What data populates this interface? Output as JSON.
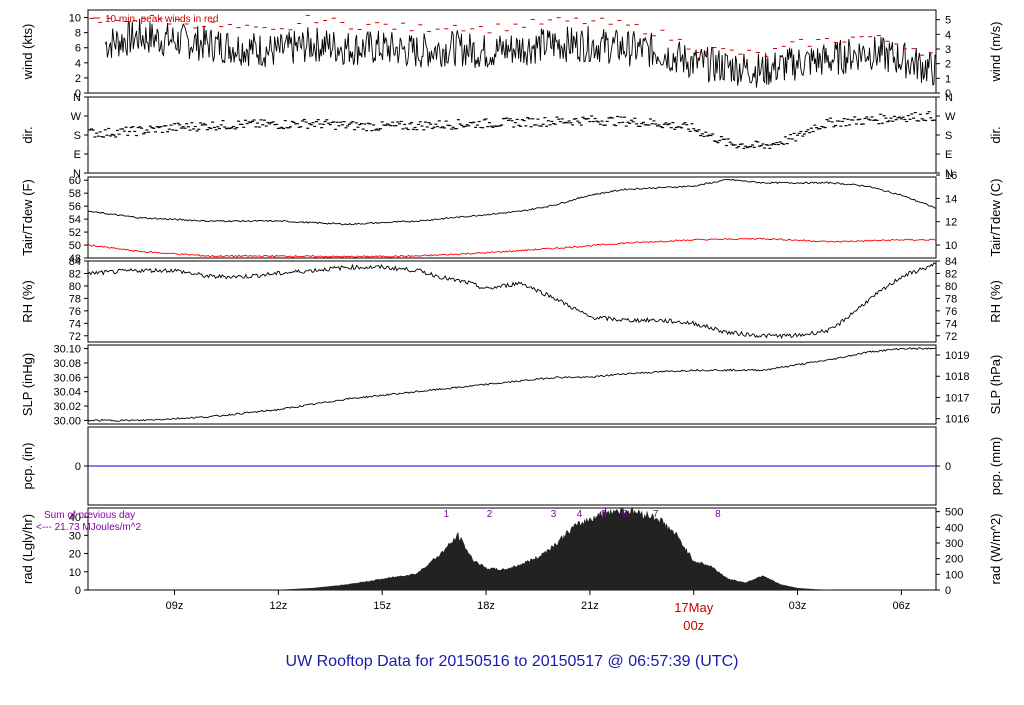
{
  "chart_data": [
    {
      "panel": "wind",
      "type": "line",
      "ylabel_left": "wind (kts)",
      "ylabel_right": "wind (m/s)",
      "ylim": [
        0,
        11
      ],
      "yticks_left": [
        "0",
        "2",
        "4",
        "6",
        "8",
        "10"
      ],
      "yticks_right": [
        "0",
        "1",
        "2",
        "3",
        "4",
        "5"
      ],
      "annotation": "10 min. peak winds in red",
      "series": [
        {
          "color": "#000000",
          "x": [
            7.0,
            8.0,
            9.0,
            10.0,
            11.0,
            12.0,
            13.0,
            14.0,
            15.0,
            16.0,
            17.0,
            18.0,
            19.0,
            20.0,
            21.0,
            22.0,
            23.0,
            24.0,
            25.0,
            26.0,
            27.0,
            28.0,
            29.0,
            30.0,
            31.0
          ],
          "values": [
            6.5,
            7.5,
            7.0,
            6.5,
            6.0,
            5.5,
            6.5,
            6.0,
            6.0,
            5.5,
            6.0,
            5.5,
            6.0,
            6.5,
            6.5,
            6.0,
            5.5,
            4.0,
            3.5,
            3.0,
            4.0,
            4.5,
            5.5,
            4.5,
            3.0
          ]
        },
        {
          "color": "#cc0000",
          "style": "points",
          "x": [
            7.0,
            8.0,
            9.0,
            10.0,
            11.0,
            12.0,
            13.0,
            14.0,
            15.0,
            16.0,
            17.0,
            18.0,
            19.0,
            20.0,
            21.0,
            22.0,
            23.0,
            24.0,
            25.0,
            26.0,
            27.0,
            28.0,
            29.0,
            30.0,
            31.0
          ],
          "values": [
            9.5,
            10.0,
            9.5,
            9.0,
            8.5,
            8.0,
            10.0,
            9.0,
            9.0,
            8.5,
            9.0,
            8.5,
            9.0,
            9.5,
            9.5,
            9.0,
            8.0,
            6.0,
            5.5,
            5.0,
            6.5,
            7.0,
            7.5,
            6.5,
            5.0
          ]
        }
      ]
    },
    {
      "panel": "dir",
      "type": "scatter",
      "ylabel_left": "dir.",
      "ylabel_right": "dir.",
      "ylim": [
        0,
        360
      ],
      "yticks_left": [
        "N",
        "E",
        "S",
        "W",
        "N"
      ],
      "yticks_right": [
        "N",
        "E",
        "S",
        "W",
        "N"
      ],
      "series": [
        {
          "color": "#000000",
          "x": [
            7.0,
            8.0,
            9.0,
            10.0,
            11.0,
            12.0,
            13.0,
            14.0,
            15.0,
            16.0,
            17.0,
            18.0,
            19.0,
            20.0,
            21.0,
            22.0,
            23.0,
            24.0,
            25.0,
            26.0,
            27.0,
            27.5,
            28.0,
            29.0,
            30.0,
            31.0
          ],
          "values": [
            190,
            200,
            215,
            225,
            230,
            230,
            235,
            225,
            220,
            225,
            230,
            235,
            240,
            245,
            250,
            245,
            235,
            210,
            140,
            125,
            170,
            220,
            240,
            250,
            265,
            270
          ]
        }
      ]
    },
    {
      "panel": "temperature",
      "type": "line",
      "ylabel_left": "Tair/Tdew (F)",
      "ylabel_right": "Tair/Tdew (C)",
      "ylim": [
        48,
        60.5
      ],
      "yticks_left": [
        "48",
        "50",
        "52",
        "54",
        "56",
        "58",
        "60"
      ],
      "yticks_right": [
        "10",
        "12",
        "14",
        "16"
      ],
      "series": [
        {
          "color": "#000000",
          "x": [
            6.5,
            8.0,
            10.0,
            12.0,
            14.0,
            16.0,
            18.0,
            19.0,
            20.0,
            21.0,
            22.0,
            24.0,
            25.0,
            26.0,
            28.0,
            29.0,
            30.0,
            31.0
          ],
          "values": [
            55.2,
            54.2,
            53.7,
            53.7,
            53.2,
            53.7,
            54.7,
            55.2,
            56.2,
            57.7,
            58.6,
            59.1,
            60.1,
            59.6,
            59.6,
            59.1,
            57.7,
            55.7
          ]
        },
        {
          "color": "#ff0000",
          "x": [
            6.5,
            8.0,
            10.0,
            12.0,
            14.0,
            16.0,
            18.0,
            20.0,
            22.0,
            24.0,
            26.0,
            28.0,
            30.0,
            31.0
          ],
          "values": [
            50.0,
            49.0,
            48.3,
            48.3,
            48.2,
            48.3,
            48.8,
            49.5,
            50.3,
            50.8,
            51.0,
            50.5,
            50.8,
            50.8
          ]
        }
      ]
    },
    {
      "panel": "rh",
      "type": "line",
      "ylabel_left": "RH (%)",
      "ylabel_right": "RH (%)",
      "ylim": [
        71,
        84
      ],
      "yticks_left": [
        "72",
        "74",
        "76",
        "78",
        "80",
        "82",
        "84"
      ],
      "yticks_right": [
        "72",
        "74",
        "76",
        "78",
        "80",
        "82",
        "84"
      ],
      "series": [
        {
          "color": "#000000",
          "x": [
            6.5,
            8.0,
            9.0,
            10.0,
            11.0,
            12.0,
            13.0,
            14.0,
            15.0,
            16.0,
            17.0,
            17.5,
            18.0,
            19.0,
            20.0,
            21.0,
            22.0,
            23.0,
            24.0,
            25.0,
            26.0,
            27.0,
            28.0,
            29.0,
            30.0,
            31.0
          ],
          "values": [
            82.0,
            82.5,
            82.5,
            81.5,
            81.5,
            82.0,
            82.5,
            83.0,
            83.0,
            82.5,
            81.0,
            80.5,
            79.5,
            80.5,
            78.0,
            75.0,
            74.5,
            74.5,
            74.0,
            72.5,
            72.0,
            72.0,
            73.0,
            77.5,
            81.5,
            83.5
          ]
        }
      ]
    },
    {
      "panel": "slp",
      "type": "line",
      "ylabel_left": "SLP (inHg)",
      "ylabel_right": "SLP (hPa)",
      "ylim": [
        29.995,
        30.105
      ],
      "yticks_left": [
        "30.00",
        "30.02",
        "30.04",
        "30.06",
        "30.08",
        "30.10"
      ],
      "yticks_right": [
        "1016",
        "1017",
        "1018",
        "1019"
      ],
      "series": [
        {
          "color": "#000000",
          "x": [
            6.5,
            8.0,
            10.0,
            12.0,
            14.0,
            16.0,
            18.0,
            19.0,
            20.0,
            21.0,
            22.0,
            24.0,
            26.0,
            28.0,
            29.0,
            30.0,
            31.0
          ],
          "values": [
            30.0,
            30.0,
            30.005,
            30.015,
            30.03,
            30.04,
            30.05,
            30.055,
            30.06,
            30.06,
            30.065,
            30.07,
            30.07,
            30.085,
            30.095,
            30.1,
            30.1
          ]
        }
      ]
    },
    {
      "panel": "pcp",
      "type": "line",
      "ylabel_left": "pcp. (in)",
      "ylabel_right": "pcp. (mm)",
      "ylim": [
        -1,
        1
      ],
      "yticks_left": [
        "0"
      ],
      "yticks_right": [
        "0"
      ],
      "series": [
        {
          "color": "#0000cc",
          "x": [
            6.5,
            31.0
          ],
          "values": [
            0,
            0
          ]
        }
      ]
    },
    {
      "panel": "rad",
      "type": "area",
      "ylabel_left": "rad (Lgly/hr)",
      "ylabel_right": "rad (W/m^2)",
      "ylim": [
        0,
        45
      ],
      "yticks_left": [
        "0",
        "10",
        "20",
        "30",
        "40"
      ],
      "yticks_right": [
        "0",
        "100",
        "200",
        "300",
        "400",
        "500"
      ],
      "series": [
        {
          "color": "#222222",
          "x": [
            12.0,
            13.0,
            14.0,
            15.0,
            16.0,
            16.7,
            17.0,
            17.2,
            17.6,
            18.0,
            18.5,
            19.0,
            19.5,
            20.0,
            20.5,
            21.0,
            21.5,
            22.0,
            22.5,
            23.0,
            23.5,
            24.0,
            24.5,
            25.0,
            25.5,
            26.0,
            26.5,
            27.0,
            27.5,
            28.0
          ],
          "values": [
            0,
            1,
            3,
            6,
            9,
            20,
            26,
            30,
            17,
            12,
            11,
            14,
            18,
            25,
            34,
            39,
            43,
            44,
            42,
            39,
            30,
            16,
            13,
            6,
            4,
            8,
            3,
            1,
            0.3,
            0
          ]
        }
      ],
      "markers": [
        "1",
        "2",
        "3",
        "4",
        "5",
        "6",
        "7",
        "8"
      ],
      "sum_title": "Sum of previous day",
      "sum_value": "<--- 21.73 MJoules/m^2"
    }
  ],
  "x_axis": {
    "tick_labels": [
      "09z",
      "12z",
      "15z",
      "18z",
      "21z",
      "17May",
      "00z",
      "03z",
      "06z"
    ],
    "date_label": "17May",
    "date_sublabel": "00z"
  },
  "footer": {
    "title": "UW Rooftop Data for 20150516  to  20150517 @ 06:57:39  (UTC)"
  },
  "colors": {
    "frame": "#000000",
    "title": "#1a1aa8",
    "date_marker": "#cc0000",
    "wind_peak": "#cc0000",
    "dew": "#ff0000",
    "precip": "#0000cc",
    "rad_fill": "#222222",
    "rad_text": "#8800aa"
  }
}
